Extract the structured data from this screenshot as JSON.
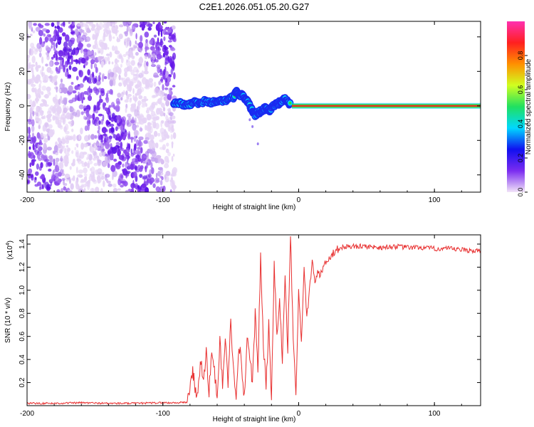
{
  "title": "C2E1.2026.051.05.20.G27",
  "chart_data": [
    {
      "type": "heatmap",
      "name": "spectrogram",
      "xlabel": "Height of straight line (km)",
      "ylabel": "Frequency (Hz)",
      "xlim": [
        -200,
        134
      ],
      "ylim": [
        -50,
        49
      ],
      "xticks": [
        -200,
        -100,
        0,
        100
      ],
      "xtick_labels": [
        "-200",
        "-100",
        "0",
        "100"
      ],
      "yticks": [
        -40,
        -20,
        0,
        20,
        40
      ],
      "ytick_labels": [
        "-40",
        "-20",
        "0",
        "20",
        "40"
      ],
      "noise_region_x": [
        -200,
        -91
      ],
      "signal_track": {
        "x": [
          -92,
          -88,
          -84,
          -80,
          -76,
          -72,
          -68,
          -64,
          -60,
          -56,
          -52,
          -48,
          -46,
          -44,
          -42,
          -40,
          -38,
          -36,
          -34,
          -32,
          -30,
          -28,
          -26,
          -24,
          -22,
          -20,
          -18,
          -16,
          -14,
          -12,
          -10,
          -8,
          -6
        ],
        "y": [
          2,
          1.5,
          0.5,
          1,
          2,
          1.5,
          3,
          2,
          3,
          3,
          4,
          5,
          8,
          7,
          6,
          5,
          3,
          0,
          -3,
          -5,
          -4,
          -3,
          -2,
          -1,
          -3,
          -1,
          0,
          1,
          2,
          3,
          4,
          2,
          1
        ]
      },
      "carrier_line": {
        "x_start": -5,
        "x_end": 134,
        "frequency": 0
      },
      "colorbar": {
        "label": "Normalized spectral amplitude",
        "range": [
          0,
          1
        ],
        "ticks": [
          0.0,
          0.2,
          0.4,
          0.6,
          0.8
        ],
        "tick_labels": [
          "0.0",
          "0.2",
          "0.4",
          "0.6",
          "0.8"
        ],
        "colors": [
          "#f2e4f8",
          "#7b2cf0",
          "#1010f0",
          "#00d8ff",
          "#20e060",
          "#d0ff20",
          "#ff9000",
          "#ff2020",
          "#ff30b0"
        ]
      }
    },
    {
      "type": "line",
      "name": "snr",
      "xlabel": "Height of straight line (km)",
      "ylabel": "SNR (10 * v/v)",
      "yscale_label": "(x10",
      "yscale_exponent": "4",
      "xlim": [
        -200,
        134
      ],
      "ylim": [
        0,
        1.48
      ],
      "xticks": [
        -200,
        -100,
        0,
        100
      ],
      "xtick_labels": [
        "-200",
        "-100",
        "0",
        "100"
      ],
      "yticks": [
        0.2,
        0.4,
        0.6,
        0.8,
        1.0,
        1.2,
        1.4
      ],
      "ytick_labels": [
        "0.2",
        "0.4",
        "0.6",
        "0.8",
        "1.0",
        "1.2",
        "1.4"
      ],
      "line_color": "#e83030",
      "series": [
        {
          "name": "SNR",
          "x": [
            -200,
            -180,
            -160,
            -140,
            -120,
            -100,
            -90,
            -82,
            -81,
            -78,
            -75,
            -72,
            -70,
            -68,
            -66,
            -64,
            -62,
            -60,
            -58,
            -56,
            -54,
            -52,
            -50,
            -48,
            -46,
            -44,
            -42,
            -40,
            -38,
            -36,
            -34,
            -32,
            -30,
            -28,
            -26,
            -24,
            -22,
            -20,
            -18,
            -16,
            -14,
            -12,
            -10,
            -8,
            -6,
            -4,
            -2,
            0,
            2,
            4,
            6,
            8,
            10,
            12,
            14,
            16,
            18,
            20,
            22,
            24,
            26,
            28,
            30,
            32,
            35,
            40,
            50,
            60,
            70,
            80,
            90,
            100,
            110,
            120,
            134
          ],
          "y": [
            0.02,
            0.02,
            0.025,
            0.02,
            0.02,
            0.025,
            0.025,
            0.03,
            0.1,
            0.3,
            0.05,
            0.4,
            0.2,
            0.45,
            0.1,
            0.5,
            0.3,
            0.05,
            0.55,
            0.2,
            0.6,
            0.15,
            0.75,
            0.3,
            0.1,
            0.55,
            0.35,
            0.05,
            0.6,
            0.45,
            0.2,
            0.8,
            0.3,
            1.28,
            0.55,
            0.15,
            0.7,
            0.05,
            1.22,
            0.6,
            0.9,
            0.4,
            1.15,
            0.5,
            1.48,
            0.6,
            0.08,
            1.0,
            0.55,
            1.2,
            0.75,
            1.0,
            1.25,
            1.05,
            1.18,
            1.12,
            1.2,
            1.25,
            1.28,
            1.3,
            1.33,
            1.35,
            1.36,
            1.37,
            1.38,
            1.38,
            1.38,
            1.37,
            1.38,
            1.37,
            1.37,
            1.36,
            1.36,
            1.35,
            1.34
          ]
        }
      ]
    }
  ]
}
